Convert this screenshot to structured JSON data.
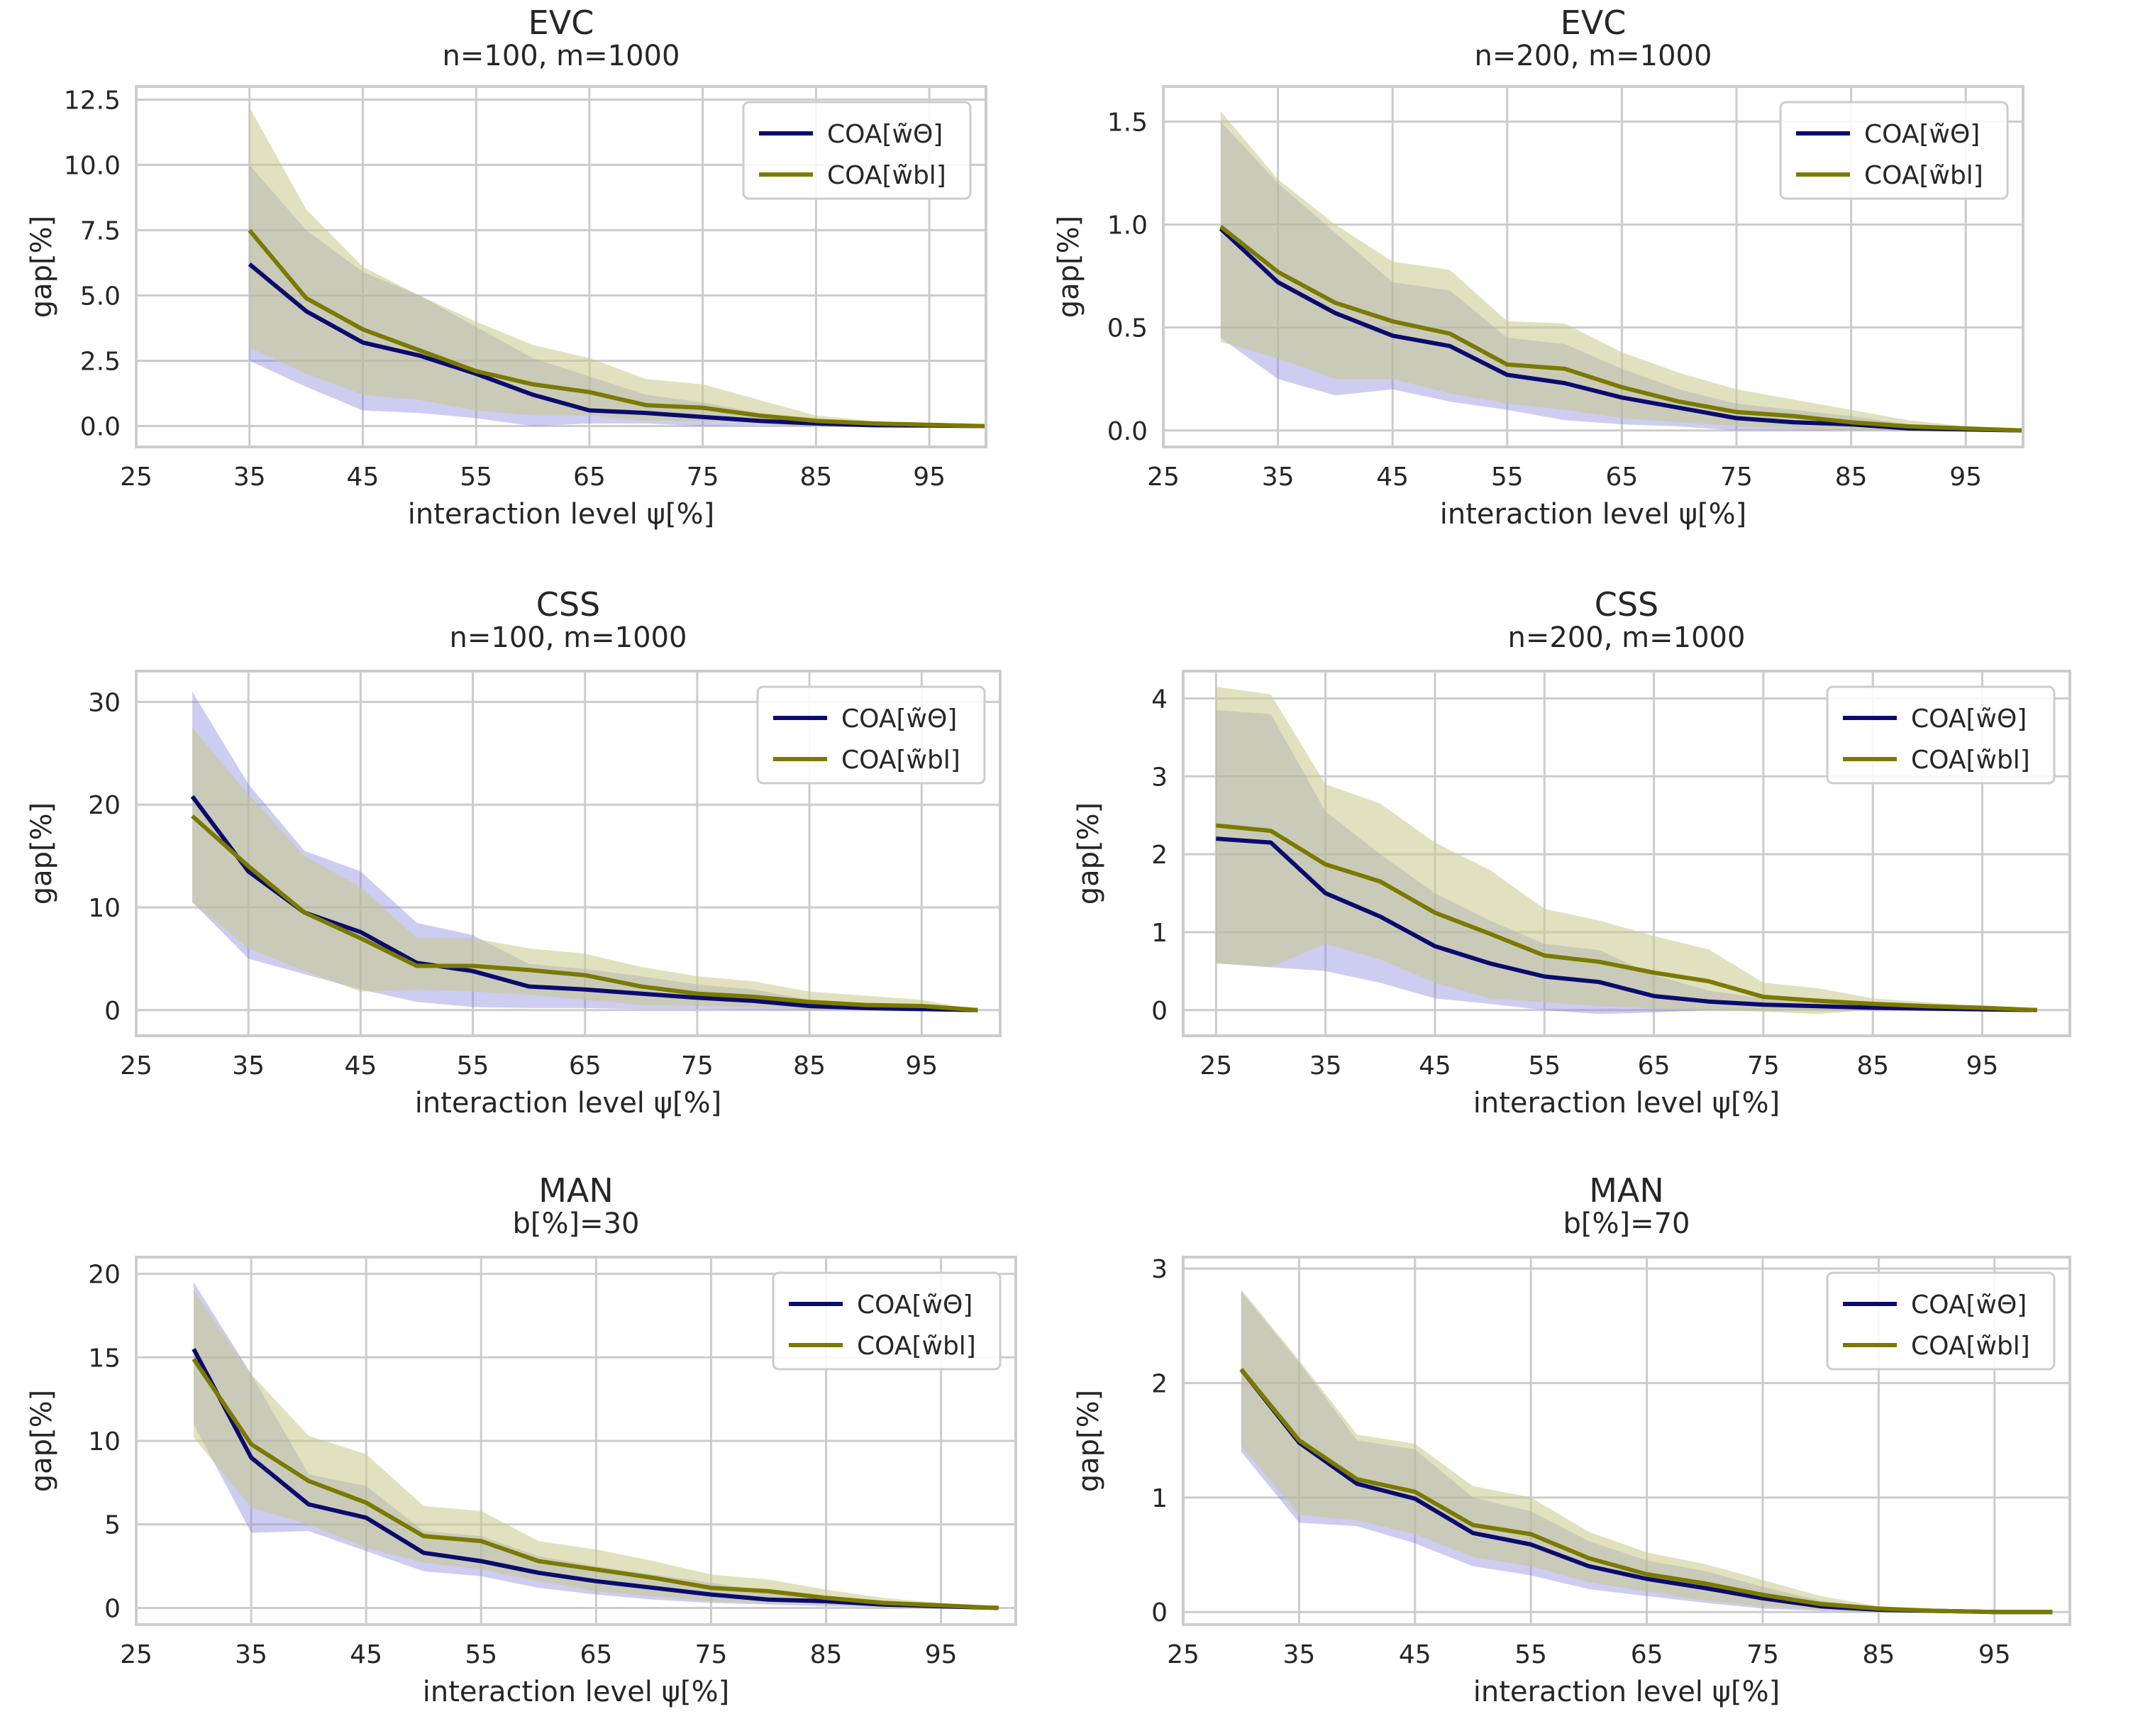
{
  "colors": {
    "theta": "#0b0b6e",
    "bl": "#7a7a00",
    "theta_band": "#8888dd",
    "bl_band": "#c8c88a"
  },
  "chart_data": [
    {
      "type": "line",
      "title": "EVC",
      "subtitle": "n=100, m=1000",
      "xlabel": "interaction level ψ[%]",
      "ylabel": "gap[%]",
      "xlim": [
        25,
        100
      ],
      "ylim": [
        -0.8,
        13
      ],
      "xticks": [
        "25",
        "35",
        "45",
        "55",
        "65",
        "75",
        "85",
        "95"
      ],
      "yticks": [
        "0.0",
        "2.5",
        "5.0",
        "7.5",
        "10.0",
        "12.5"
      ],
      "legend_position": "top-right",
      "x": [
        35,
        40,
        45,
        50,
        55,
        60,
        65,
        70,
        75,
        80,
        85,
        90,
        95,
        100
      ],
      "series": [
        {
          "name": "COA[w̃Θ]",
          "color_key": "theta",
          "values": [
            6.2,
            4.4,
            3.2,
            2.7,
            2.0,
            1.2,
            0.6,
            0.5,
            0.35,
            0.2,
            0.1,
            0.03,
            0.02,
            0.0
          ],
          "lower": [
            2.5,
            1.5,
            0.6,
            0.5,
            0.3,
            0.0,
            0.1,
            0.1,
            0.0,
            0.05,
            0.0,
            0.0,
            0.0,
            0.0
          ],
          "upper": [
            10.0,
            7.5,
            5.9,
            5.0,
            3.8,
            2.6,
            1.9,
            1.2,
            0.9,
            0.5,
            0.3,
            0.1,
            0.05,
            0.0
          ]
        },
        {
          "name": "COA[w̃bl]",
          "color_key": "bl",
          "values": [
            7.5,
            4.9,
            3.7,
            2.9,
            2.1,
            1.6,
            1.3,
            0.8,
            0.7,
            0.4,
            0.2,
            0.1,
            0.05,
            0.0
          ],
          "lower": [
            3.0,
            2.0,
            1.2,
            1.0,
            0.6,
            0.4,
            0.4,
            0.2,
            0.2,
            0.1,
            0.0,
            0.0,
            0.0,
            0.0
          ],
          "upper": [
            12.2,
            8.3,
            6.1,
            5.0,
            4.0,
            3.1,
            2.6,
            1.8,
            1.6,
            1.0,
            0.4,
            0.2,
            0.08,
            0.0
          ]
        }
      ]
    },
    {
      "type": "line",
      "title": "EVC",
      "subtitle": "n=200, m=1000",
      "xlabel": "interaction level ψ[%]",
      "ylabel": "gap[%]",
      "xlim": [
        25,
        100
      ],
      "ylim": [
        -0.08,
        1.67
      ],
      "xticks": [
        "25",
        "35",
        "45",
        "55",
        "65",
        "75",
        "85",
        "95"
      ],
      "yticks": [
        "0.0",
        "0.5",
        "1.0",
        "1.5"
      ],
      "legend_position": "top-right",
      "x": [
        30,
        35,
        40,
        45,
        50,
        55,
        60,
        65,
        70,
        75,
        80,
        85,
        90,
        95,
        100
      ],
      "series": [
        {
          "name": "COA[w̃Θ]",
          "color_key": "theta",
          "values": [
            0.98,
            0.72,
            0.57,
            0.46,
            0.41,
            0.27,
            0.23,
            0.16,
            0.11,
            0.06,
            0.04,
            0.03,
            0.01,
            0.005,
            0.0
          ],
          "lower": [
            0.45,
            0.25,
            0.17,
            0.2,
            0.14,
            0.1,
            0.05,
            0.03,
            0.02,
            0.0,
            0.0,
            0.0,
            0.0,
            0.0,
            0.0
          ],
          "upper": [
            1.5,
            1.2,
            0.96,
            0.72,
            0.68,
            0.45,
            0.42,
            0.3,
            0.2,
            0.13,
            0.1,
            0.07,
            0.03,
            0.01,
            0.0
          ]
        },
        {
          "name": "COA[w̃bl]",
          "color_key": "bl",
          "values": [
            0.99,
            0.77,
            0.62,
            0.53,
            0.47,
            0.32,
            0.3,
            0.21,
            0.14,
            0.09,
            0.07,
            0.04,
            0.02,
            0.01,
            0.0
          ],
          "lower": [
            0.43,
            0.35,
            0.25,
            0.25,
            0.18,
            0.13,
            0.1,
            0.06,
            0.04,
            0.02,
            0.01,
            0.0,
            0.0,
            0.0,
            0.0
          ],
          "upper": [
            1.55,
            1.22,
            1.0,
            0.82,
            0.78,
            0.53,
            0.52,
            0.38,
            0.28,
            0.2,
            0.15,
            0.1,
            0.05,
            0.02,
            0.0
          ]
        }
      ]
    },
    {
      "type": "line",
      "title": "CSS",
      "subtitle": "n=100, m=1000",
      "xlabel": "interaction level ψ[%]",
      "ylabel": "gap[%]",
      "xlim": [
        25,
        102
      ],
      "ylim": [
        -2.5,
        33
      ],
      "xticks": [
        "25",
        "35",
        "45",
        "55",
        "65",
        "75",
        "85",
        "95"
      ],
      "yticks": [
        "0",
        "10",
        "20",
        "30"
      ],
      "legend_position": "top-right",
      "x": [
        30,
        35,
        40,
        45,
        50,
        55,
        60,
        65,
        70,
        75,
        80,
        85,
        90,
        95,
        100
      ],
      "series": [
        {
          "name": "COA[w̃Θ]",
          "color_key": "theta",
          "values": [
            20.8,
            13.5,
            9.5,
            7.6,
            4.6,
            3.8,
            2.3,
            2.0,
            1.6,
            1.2,
            0.9,
            0.4,
            0.2,
            0.1,
            0.0
          ],
          "lower": [
            10.5,
            5.0,
            3.5,
            2.0,
            0.8,
            0.3,
            0.2,
            0.2,
            0.1,
            0.1,
            0.0,
            0.0,
            0.0,
            0.0,
            0.0
          ],
          "upper": [
            31.0,
            22.0,
            15.5,
            13.5,
            8.5,
            7.3,
            4.5,
            4.0,
            3.3,
            2.5,
            2.0,
            1.0,
            0.5,
            0.2,
            0.0
          ]
        },
        {
          "name": "COA[w̃bl]",
          "color_key": "bl",
          "values": [
            18.9,
            14.0,
            9.5,
            7.0,
            4.3,
            4.3,
            3.9,
            3.4,
            2.3,
            1.6,
            1.3,
            0.8,
            0.5,
            0.4,
            0.0
          ],
          "lower": [
            10.5,
            6.0,
            3.8,
            1.8,
            2.0,
            1.8,
            1.5,
            1.0,
            0.5,
            0.4,
            0.3,
            0.1,
            0.0,
            0.0,
            0.0
          ],
          "upper": [
            27.5,
            21.0,
            15.0,
            12.0,
            7.0,
            7.0,
            6.0,
            5.5,
            4.2,
            3.3,
            2.8,
            1.8,
            1.4,
            1.0,
            0.0
          ]
        }
      ]
    },
    {
      "type": "line",
      "title": "CSS",
      "subtitle": "n=200, m=1000",
      "xlabel": "interaction level ψ[%]",
      "ylabel": "gap[%]",
      "xlim": [
        22,
        103
      ],
      "ylim": [
        -0.33,
        4.35
      ],
      "xticks": [
        "25",
        "35",
        "45",
        "55",
        "65",
        "75",
        "85",
        "95"
      ],
      "yticks": [
        "0",
        "1",
        "2",
        "3",
        "4"
      ],
      "legend_position": "top-right",
      "x": [
        25,
        30,
        35,
        40,
        45,
        50,
        55,
        60,
        65,
        70,
        75,
        80,
        85,
        90,
        95,
        100
      ],
      "series": [
        {
          "name": "COA[w̃Θ]",
          "color_key": "theta",
          "values": [
            2.2,
            2.15,
            1.5,
            1.2,
            0.82,
            0.6,
            0.43,
            0.36,
            0.18,
            0.11,
            0.07,
            0.05,
            0.03,
            0.02,
            0.01,
            0.0
          ],
          "lower": [
            0.6,
            0.55,
            0.5,
            0.35,
            0.15,
            0.08,
            0.0,
            -0.05,
            -0.03,
            0.0,
            0.0,
            0.0,
            0.0,
            0.0,
            0.0,
            0.0
          ],
          "upper": [
            3.85,
            3.8,
            2.55,
            2.0,
            1.5,
            1.15,
            0.85,
            0.77,
            0.45,
            0.25,
            0.15,
            0.1,
            0.08,
            0.05,
            0.03,
            0.0
          ]
        },
        {
          "name": "COA[w̃bl]",
          "color_key": "bl",
          "values": [
            2.37,
            2.3,
            1.87,
            1.65,
            1.25,
            0.98,
            0.7,
            0.62,
            0.48,
            0.37,
            0.17,
            0.12,
            0.08,
            0.05,
            0.03,
            0.0
          ],
          "lower": [
            0.6,
            0.55,
            0.85,
            0.65,
            0.35,
            0.15,
            0.1,
            0.05,
            0.02,
            0.0,
            -0.02,
            -0.05,
            0.0,
            0.0,
            0.0,
            0.0
          ],
          "upper": [
            4.15,
            4.05,
            2.9,
            2.65,
            2.15,
            1.8,
            1.3,
            1.15,
            0.95,
            0.78,
            0.35,
            0.28,
            0.15,
            0.1,
            0.05,
            0.0
          ]
        }
      ]
    },
    {
      "type": "line",
      "title": "MAN",
      "subtitle": "b[%]=30",
      "xlabel": "interaction level ψ[%]",
      "ylabel": "gap[%]",
      "xlim": [
        25,
        101.5
      ],
      "ylim": [
        -1,
        21
      ],
      "xticks": [
        "25",
        "35",
        "45",
        "55",
        "65",
        "75",
        "85",
        "95"
      ],
      "yticks": [
        "0",
        "5",
        "10",
        "15",
        "20"
      ],
      "legend_position": "top-right",
      "x": [
        30,
        35,
        40,
        45,
        50,
        55,
        60,
        65,
        70,
        75,
        80,
        85,
        90,
        95,
        100
      ],
      "series": [
        {
          "name": "COA[w̃Θ]",
          "color_key": "theta",
          "values": [
            15.5,
            9.0,
            6.2,
            5.4,
            3.3,
            2.8,
            2.1,
            1.6,
            1.2,
            0.8,
            0.5,
            0.4,
            0.2,
            0.1,
            0.0
          ],
          "lower": [
            11.0,
            4.5,
            4.6,
            3.4,
            2.2,
            1.9,
            1.2,
            0.8,
            0.5,
            0.3,
            0.2,
            0.1,
            0.05,
            0.0,
            0.0
          ],
          "upper": [
            19.5,
            14.0,
            8.0,
            7.3,
            4.6,
            4.3,
            3.1,
            2.5,
            2.0,
            1.5,
            1.0,
            0.7,
            0.4,
            0.2,
            0.0
          ]
        },
        {
          "name": "COA[w̃bl]",
          "color_key": "bl",
          "values": [
            14.9,
            9.8,
            7.6,
            6.3,
            4.3,
            4.0,
            2.8,
            2.3,
            1.8,
            1.2,
            1.0,
            0.6,
            0.3,
            0.15,
            0.0
          ],
          "lower": [
            10.2,
            6.0,
            5.0,
            3.6,
            2.7,
            2.3,
            1.6,
            1.0,
            0.7,
            0.4,
            0.3,
            0.2,
            0.1,
            0.0,
            0.0
          ],
          "upper": [
            19.0,
            14.0,
            10.3,
            9.2,
            6.1,
            5.8,
            4.0,
            3.5,
            2.8,
            2.0,
            1.7,
            1.1,
            0.6,
            0.3,
            0.0
          ]
        }
      ]
    },
    {
      "type": "line",
      "title": "MAN",
      "subtitle": "b[%]=70",
      "xlabel": "interaction level ψ[%]",
      "ylabel": "gap[%]",
      "xlim": [
        25,
        101.5
      ],
      "ylim": [
        -0.11,
        3.1
      ],
      "xticks": [
        "25",
        "35",
        "45",
        "55",
        "65",
        "75",
        "85",
        "95"
      ],
      "yticks": [
        "0",
        "1",
        "2",
        "3"
      ],
      "legend_position": "top-right",
      "x": [
        30,
        35,
        40,
        45,
        50,
        55,
        60,
        65,
        70,
        75,
        80,
        85,
        90,
        95,
        100
      ],
      "series": [
        {
          "name": "COA[w̃Θ]",
          "color_key": "theta",
          "values": [
            2.12,
            1.48,
            1.12,
            0.99,
            0.69,
            0.59,
            0.4,
            0.29,
            0.21,
            0.12,
            0.05,
            0.02,
            0.01,
            0.0,
            0.0
          ],
          "lower": [
            1.4,
            0.78,
            0.75,
            0.6,
            0.4,
            0.32,
            0.2,
            0.14,
            0.08,
            0.03,
            0.01,
            0.0,
            0.0,
            0.0,
            0.0
          ],
          "upper": [
            2.8,
            2.18,
            1.5,
            1.42,
            1.0,
            0.88,
            0.62,
            0.45,
            0.36,
            0.22,
            0.1,
            0.04,
            0.02,
            0.0,
            0.0
          ]
        },
        {
          "name": "COA[w̃bl]",
          "color_key": "bl",
          "values": [
            2.12,
            1.5,
            1.16,
            1.05,
            0.76,
            0.68,
            0.47,
            0.33,
            0.25,
            0.15,
            0.07,
            0.03,
            0.01,
            0.0,
            0.0
          ],
          "lower": [
            1.45,
            0.85,
            0.8,
            0.68,
            0.48,
            0.4,
            0.26,
            0.18,
            0.1,
            0.05,
            0.02,
            0.0,
            0.0,
            0.0,
            0.0
          ],
          "upper": [
            2.82,
            2.2,
            1.55,
            1.47,
            1.1,
            1.0,
            0.7,
            0.52,
            0.42,
            0.28,
            0.14,
            0.05,
            0.02,
            0.0,
            0.0
          ]
        }
      ]
    }
  ]
}
